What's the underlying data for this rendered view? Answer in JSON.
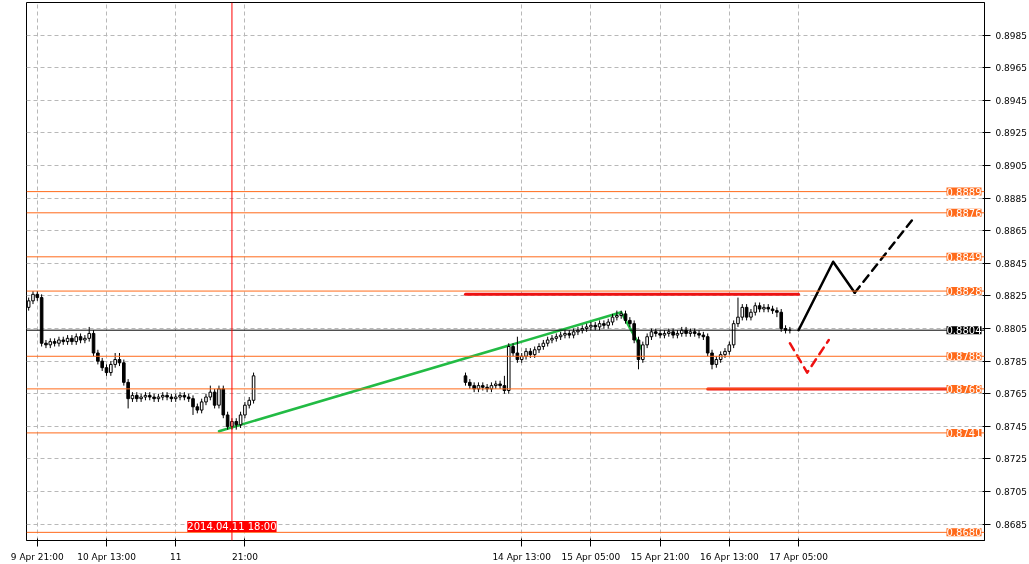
{
  "chart_data": {
    "type": "candlestick",
    "x": [
      "2014-04-09T19:00",
      "2014-04-09T20:00",
      "2014-04-09T21:00",
      "2014-04-09T22:00",
      "2014-04-09T23:00",
      "2014-04-10T00:00",
      "2014-04-10T01:00",
      "2014-04-10T02:00",
      "2014-04-10T03:00",
      "2014-04-10T04:00",
      "2014-04-10T05:00",
      "2014-04-10T06:00",
      "2014-04-10T07:00",
      "2014-04-10T08:00",
      "2014-04-10T09:00",
      "2014-04-10T10:00",
      "2014-04-10T11:00",
      "2014-04-10T12:00",
      "2014-04-10T13:00",
      "2014-04-10T14:00",
      "2014-04-10T15:00",
      "2014-04-10T16:00",
      "2014-04-10T17:00",
      "2014-04-10T18:00",
      "2014-04-10T19:00",
      "2014-04-10T20:00",
      "2014-04-10T21:00",
      "2014-04-10T22:00",
      "2014-04-10T23:00",
      "2014-04-11T00:00",
      "2014-04-11T01:00",
      "2014-04-11T02:00",
      "2014-04-11T03:00",
      "2014-04-11T04:00",
      "2014-04-11T05:00",
      "2014-04-11T06:00",
      "2014-04-11T07:00",
      "2014-04-11T08:00",
      "2014-04-11T09:00",
      "2014-04-11T10:00",
      "2014-04-11T11:00",
      "2014-04-11T12:00",
      "2014-04-11T13:00",
      "2014-04-11T14:00",
      "2014-04-11T15:00",
      "2014-04-11T16:00",
      "2014-04-11T17:00",
      "2014-04-11T18:00",
      "2014-04-11T19:00",
      "2014-04-11T20:00",
      "2014-04-11T21:00",
      "2014-04-11T22:00",
      "2014-04-11T23:00",
      "2014-04-14T00:00",
      "2014-04-14T01:00",
      "2014-04-14T02:00",
      "2014-04-14T03:00",
      "2014-04-14T04:00",
      "2014-04-14T05:00",
      "2014-04-14T06:00",
      "2014-04-14T07:00",
      "2014-04-14T08:00",
      "2014-04-14T09:00",
      "2014-04-14T10:00",
      "2014-04-14T11:00",
      "2014-04-14T12:00",
      "2014-04-14T13:00",
      "2014-04-14T14:00",
      "2014-04-14T15:00",
      "2014-04-14T16:00",
      "2014-04-14T17:00",
      "2014-04-14T18:00",
      "2014-04-14T19:00",
      "2014-04-14T20:00",
      "2014-04-14T21:00",
      "2014-04-14T22:00",
      "2014-04-14T23:00",
      "2014-04-15T00:00",
      "2014-04-15T01:00",
      "2014-04-15T02:00",
      "2014-04-15T03:00",
      "2014-04-15T04:00",
      "2014-04-15T05:00",
      "2014-04-15T06:00",
      "2014-04-15T07:00",
      "2014-04-15T08:00",
      "2014-04-15T09:00",
      "2014-04-15T10:00",
      "2014-04-15T11:00",
      "2014-04-15T12:00",
      "2014-04-15T13:00",
      "2014-04-15T14:00",
      "2014-04-15T15:00",
      "2014-04-15T16:00",
      "2014-04-15T17:00",
      "2014-04-15T18:00",
      "2014-04-15T19:00",
      "2014-04-15T20:00",
      "2014-04-15T21:00",
      "2014-04-15T22:00",
      "2014-04-15T23:00",
      "2014-04-16T00:00",
      "2014-04-16T01:00",
      "2014-04-16T02:00",
      "2014-04-16T03:00",
      "2014-04-16T04:00",
      "2014-04-16T05:00",
      "2014-04-16T06:00",
      "2014-04-16T07:00",
      "2014-04-16T08:00",
      "2014-04-16T09:00",
      "2014-04-16T10:00",
      "2014-04-16T11:00",
      "2014-04-16T12:00",
      "2014-04-16T13:00",
      "2014-04-16T14:00",
      "2014-04-16T15:00",
      "2014-04-16T16:00",
      "2014-04-16T17:00",
      "2014-04-16T18:00",
      "2014-04-16T19:00",
      "2014-04-16T20:00",
      "2014-04-16T21:00",
      "2014-04-16T22:00",
      "2014-04-16T23:00",
      "2014-04-17T00:00",
      "2014-04-17T01:00",
      "2014-04-17T02:00",
      "2014-04-17T03:00"
    ],
    "ohlc": [
      [
        0.8818,
        0.8824,
        0.8816,
        0.8822
      ],
      [
        0.8822,
        0.8828,
        0.882,
        0.8826
      ],
      [
        0.8826,
        0.8828,
        0.8822,
        0.8824
      ],
      [
        0.8824,
        0.8826,
        0.8794,
        0.8796
      ],
      [
        0.8796,
        0.8798,
        0.8793,
        0.8795
      ],
      [
        0.8795,
        0.8799,
        0.8793,
        0.8797
      ],
      [
        0.8797,
        0.8799,
        0.8794,
        0.8796
      ],
      [
        0.8796,
        0.88,
        0.8794,
        0.8798
      ],
      [
        0.8798,
        0.88,
        0.8795,
        0.8797
      ],
      [
        0.8797,
        0.8801,
        0.8795,
        0.8799
      ],
      [
        0.8799,
        0.8801,
        0.8795,
        0.8797
      ],
      [
        0.8797,
        0.8802,
        0.8795,
        0.88
      ],
      [
        0.88,
        0.8802,
        0.8796,
        0.8798
      ],
      [
        0.8798,
        0.8801,
        0.8796,
        0.8799
      ],
      [
        0.8799,
        0.8806,
        0.8797,
        0.8802
      ],
      [
        0.8802,
        0.8804,
        0.8788,
        0.879
      ],
      [
        0.879,
        0.8792,
        0.8783,
        0.8785
      ],
      [
        0.8785,
        0.8787,
        0.8779,
        0.8781
      ],
      [
        0.8781,
        0.8783,
        0.8776,
        0.8778
      ],
      [
        0.8778,
        0.8785,
        0.8776,
        0.8783
      ],
      [
        0.8783,
        0.879,
        0.8781,
        0.8786
      ],
      [
        0.8786,
        0.879,
        0.8782,
        0.8784
      ],
      [
        0.8784,
        0.8786,
        0.877,
        0.8772
      ],
      [
        0.8772,
        0.8774,
        0.8756,
        0.8762
      ],
      [
        0.8762,
        0.8766,
        0.876,
        0.8764
      ],
      [
        0.8764,
        0.8766,
        0.876,
        0.8762
      ],
      [
        0.8762,
        0.8765,
        0.876,
        0.8763
      ],
      [
        0.8763,
        0.8766,
        0.8761,
        0.8764
      ],
      [
        0.8764,
        0.8766,
        0.8761,
        0.8763
      ],
      [
        0.8763,
        0.8765,
        0.876,
        0.8762
      ],
      [
        0.8762,
        0.8765,
        0.876,
        0.8763
      ],
      [
        0.8763,
        0.8766,
        0.8761,
        0.8764
      ],
      [
        0.8764,
        0.8766,
        0.8761,
        0.8763
      ],
      [
        0.8763,
        0.8765,
        0.876,
        0.8762
      ],
      [
        0.8762,
        0.8765,
        0.876,
        0.8763
      ],
      [
        0.8763,
        0.8766,
        0.8761,
        0.8764
      ],
      [
        0.8764,
        0.8766,
        0.8761,
        0.8763
      ],
      [
        0.8763,
        0.8765,
        0.876,
        0.8762
      ],
      [
        0.8762,
        0.8764,
        0.8752,
        0.8757
      ],
      [
        0.8757,
        0.8759,
        0.8753,
        0.8755
      ],
      [
        0.8755,
        0.8762,
        0.8753,
        0.876
      ],
      [
        0.876,
        0.8765,
        0.8758,
        0.8763
      ],
      [
        0.8763,
        0.877,
        0.8761,
        0.8766
      ],
      [
        0.8766,
        0.8768,
        0.8756,
        0.8758
      ],
      [
        0.8758,
        0.877,
        0.8756,
        0.8768
      ],
      [
        0.8768,
        0.877,
        0.875,
        0.8752
      ],
      [
        0.8752,
        0.8754,
        0.8743,
        0.8745
      ],
      [
        0.8745,
        0.875,
        0.8743,
        0.8748
      ],
      [
        0.8748,
        0.875,
        0.8743,
        0.8746
      ],
      [
        0.8746,
        0.8754,
        0.8744,
        0.8752
      ],
      [
        0.8752,
        0.876,
        0.875,
        0.8758
      ],
      [
        0.8758,
        0.8763,
        0.8756,
        0.8761
      ],
      [
        0.8761,
        0.8778,
        0.8759,
        0.8776
      ],
      [
        0.8776,
        0.8778,
        0.877,
        0.8772
      ],
      [
        0.8772,
        0.8774,
        0.8768,
        0.877
      ],
      [
        0.877,
        0.8772,
        0.8766,
        0.8768
      ],
      [
        0.8768,
        0.8772,
        0.8766,
        0.877
      ],
      [
        0.877,
        0.8772,
        0.8767,
        0.8769
      ],
      [
        0.8769,
        0.8771,
        0.8766,
        0.8768
      ],
      [
        0.8768,
        0.8772,
        0.8766,
        0.877
      ],
      [
        0.877,
        0.8773,
        0.8768,
        0.8771
      ],
      [
        0.8771,
        0.8773,
        0.8768,
        0.877
      ],
      [
        0.877,
        0.8776,
        0.8765,
        0.8767
      ],
      [
        0.8767,
        0.8796,
        0.8765,
        0.8794
      ],
      [
        0.8794,
        0.8796,
        0.8788,
        0.879
      ],
      [
        0.879,
        0.88,
        0.8784,
        0.8786
      ],
      [
        0.8786,
        0.879,
        0.8784,
        0.8788
      ],
      [
        0.8788,
        0.8793,
        0.8786,
        0.8791
      ],
      [
        0.8791,
        0.8793,
        0.8787,
        0.8789
      ],
      [
        0.8789,
        0.8794,
        0.8787,
        0.8792
      ],
      [
        0.8792,
        0.8796,
        0.879,
        0.8794
      ],
      [
        0.8794,
        0.8798,
        0.8792,
        0.8796
      ],
      [
        0.8796,
        0.88,
        0.8794,
        0.8798
      ],
      [
        0.8798,
        0.8801,
        0.8796,
        0.8799
      ],
      [
        0.8799,
        0.8802,
        0.8797,
        0.88
      ],
      [
        0.88,
        0.8803,
        0.8798,
        0.8801
      ],
      [
        0.8801,
        0.8804,
        0.8799,
        0.8802
      ],
      [
        0.8802,
        0.8804,
        0.8799,
        0.8801
      ],
      [
        0.8801,
        0.8805,
        0.8799,
        0.8803
      ],
      [
        0.8803,
        0.8806,
        0.8801,
        0.8804
      ],
      [
        0.8804,
        0.8807,
        0.8802,
        0.8805
      ],
      [
        0.8805,
        0.8808,
        0.8803,
        0.8806
      ],
      [
        0.8806,
        0.8809,
        0.8804,
        0.8807
      ],
      [
        0.8807,
        0.8809,
        0.8804,
        0.8806
      ],
      [
        0.8806,
        0.881,
        0.8804,
        0.8808
      ],
      [
        0.8808,
        0.881,
        0.8805,
        0.8807
      ],
      [
        0.8807,
        0.8811,
        0.8805,
        0.8809
      ],
      [
        0.8809,
        0.8814,
        0.8807,
        0.8812
      ],
      [
        0.8812,
        0.8816,
        0.881,
        0.8813
      ],
      [
        0.8813,
        0.8816,
        0.8811,
        0.8814
      ],
      [
        0.8814,
        0.8816,
        0.8808,
        0.881
      ],
      [
        0.881,
        0.8812,
        0.8806,
        0.8808
      ],
      [
        0.8808,
        0.881,
        0.8796,
        0.8798
      ],
      [
        0.8798,
        0.88,
        0.878,
        0.8786
      ],
      [
        0.8786,
        0.8797,
        0.8784,
        0.8795
      ],
      [
        0.8795,
        0.8802,
        0.8793,
        0.88
      ],
      [
        0.88,
        0.8805,
        0.8798,
        0.8803
      ],
      [
        0.8803,
        0.8805,
        0.88,
        0.8802
      ],
      [
        0.8802,
        0.8804,
        0.8799,
        0.8801
      ],
      [
        0.8801,
        0.8804,
        0.8799,
        0.8802
      ],
      [
        0.8802,
        0.8805,
        0.88,
        0.8803
      ],
      [
        0.8803,
        0.8805,
        0.8799,
        0.8801
      ],
      [
        0.8801,
        0.8804,
        0.8799,
        0.8802
      ],
      [
        0.8802,
        0.8806,
        0.88,
        0.8804
      ],
      [
        0.8804,
        0.8806,
        0.88,
        0.8802
      ],
      [
        0.8802,
        0.8805,
        0.88,
        0.8803
      ],
      [
        0.8803,
        0.8805,
        0.88,
        0.8802
      ],
      [
        0.8802,
        0.8804,
        0.8799,
        0.8801
      ],
      [
        0.8801,
        0.8803,
        0.8798,
        0.88
      ],
      [
        0.88,
        0.8802,
        0.8788,
        0.879
      ],
      [
        0.879,
        0.8792,
        0.878,
        0.8783
      ],
      [
        0.8783,
        0.8788,
        0.8781,
        0.8786
      ],
      [
        0.8786,
        0.8791,
        0.8784,
        0.8789
      ],
      [
        0.8789,
        0.8793,
        0.8787,
        0.8791
      ],
      [
        0.8791,
        0.8797,
        0.8789,
        0.8795
      ],
      [
        0.8795,
        0.881,
        0.8793,
        0.8808
      ],
      [
        0.8808,
        0.8824,
        0.8806,
        0.8812
      ],
      [
        0.8812,
        0.882,
        0.881,
        0.8818
      ],
      [
        0.8818,
        0.882,
        0.881,
        0.8812
      ],
      [
        0.8812,
        0.8817,
        0.881,
        0.8815
      ],
      [
        0.8815,
        0.8821,
        0.8813,
        0.8819
      ],
      [
        0.8819,
        0.8821,
        0.8815,
        0.8817
      ],
      [
        0.8817,
        0.882,
        0.8815,
        0.8818
      ],
      [
        0.8818,
        0.882,
        0.8815,
        0.8817
      ],
      [
        0.8817,
        0.8819,
        0.8814,
        0.8816
      ],
      [
        0.8816,
        0.8818,
        0.8812,
        0.8815
      ],
      [
        0.8815,
        0.8817,
        0.8803,
        0.8805
      ],
      [
        0.8805,
        0.8807,
        0.8802,
        0.8804
      ],
      [
        0.8804,
        0.8806,
        0.8802,
        0.8804
      ]
    ],
    "series": [
      {
        "type": "line",
        "color": "#ee1111",
        "line_style": "solid",
        "x": [
          "2014-04-14T00:00",
          "2014-04-17T05:00"
        ],
        "values": [
          0.8826,
          0.8826
        ]
      },
      {
        "type": "line",
        "color": "#ee1111",
        "line_style": "solid",
        "x": [
          "2014-04-16T08:00",
          "2014-04-18T18:00"
        ],
        "values": [
          0.8768,
          0.8768
        ]
      },
      {
        "type": "line",
        "color": "#22bb44",
        "line_style": "solid",
        "x": [
          "2014-04-11T15:00",
          "2014-04-15T12:00",
          "2014-04-15T17:00"
        ],
        "values": [
          0.8742,
          0.8815,
          0.8791
        ]
      },
      {
        "type": "line",
        "color": "#000000",
        "line_style": "solid",
        "x": [
          "2014-04-17T05:00",
          "2014-04-17T13:00",
          "2014-04-17T18:00"
        ],
        "values": [
          0.8804,
          0.8846,
          0.8827
        ]
      },
      {
        "type": "line",
        "color": "#000000",
        "line_style": "dashed",
        "x": [
          "2014-04-17T18:00",
          "2014-04-18T08:00"
        ],
        "values": [
          0.8827,
          0.8874
        ]
      },
      {
        "type": "line",
        "color": "#ee1111",
        "line_style": "dashed",
        "x": [
          "2014-04-17T03:00",
          "2014-04-17T07:00",
          "2014-04-17T12:00"
        ],
        "values": [
          0.8796,
          0.8778,
          0.8798
        ]
      }
    ],
    "xlim": [
      "2014-04-09T18:30",
      "2014-04-19T00:00"
    ],
    "xticks": [
      {
        "value": "2014-04-09T21:00",
        "label": "9 Apr 21:00"
      },
      {
        "value": "2014-04-10T13:00",
        "label": "10 Apr 13:00"
      },
      {
        "value": "2014-04-11T05:00",
        "label": "11"
      },
      {
        "value": "2014-04-11T21:00",
        "label": "21:00"
      },
      {
        "value": "2014-04-14T13:00",
        "label": "14 Apr 13:00"
      },
      {
        "value": "2014-04-15T05:00",
        "label": "15 Apr 05:00"
      },
      {
        "value": "2014-04-15T21:00",
        "label": "15 Apr 21:00"
      },
      {
        "value": "2014-04-16T13:00",
        "label": "16 Apr 13:00"
      },
      {
        "value": "2014-04-17T05:00",
        "label": "17 Apr 05:00"
      }
    ],
    "ylim": [
      0.8675,
      0.9005
    ],
    "yticks": [
      0.8685,
      0.8705,
      0.8725,
      0.8745,
      0.8765,
      0.8785,
      0.8805,
      0.8825,
      0.8845,
      0.8865,
      0.8885,
      0.8905,
      0.8925,
      0.8945,
      0.8965,
      0.8985
    ],
    "grid": true,
    "ref_lines": [
      {
        "axis": "y",
        "value": 0.8889,
        "label": "0.8889",
        "color": "#ff6a1a"
      },
      {
        "axis": "y",
        "value": 0.8876,
        "label": "0.8876",
        "color": "#ff6a1a"
      },
      {
        "axis": "y",
        "value": 0.8849,
        "label": "0.8849",
        "color": "#ff6a1a"
      },
      {
        "axis": "y",
        "value": 0.8828,
        "label": "0.8828",
        "color": "#ff6a1a"
      },
      {
        "axis": "y",
        "value": 0.8804,
        "label": "0.8804",
        "color": "#000000"
      },
      {
        "axis": "y",
        "value": 0.8788,
        "label": "0.8788",
        "color": "#ff6a1a"
      },
      {
        "axis": "y",
        "value": 0.8768,
        "label": "0.8768",
        "color": "#ff6a1a"
      },
      {
        "axis": "y",
        "value": 0.8741,
        "label": "0.8741",
        "color": "#ff6a1a"
      },
      {
        "axis": "y",
        "value": 0.868,
        "label": "0.8680",
        "color": "#ff6a1a"
      },
      {
        "axis": "x",
        "value": "2014-04-11T18:00",
        "label": "2014.04.11 18:00",
        "color": "#ff0000"
      }
    ]
  }
}
